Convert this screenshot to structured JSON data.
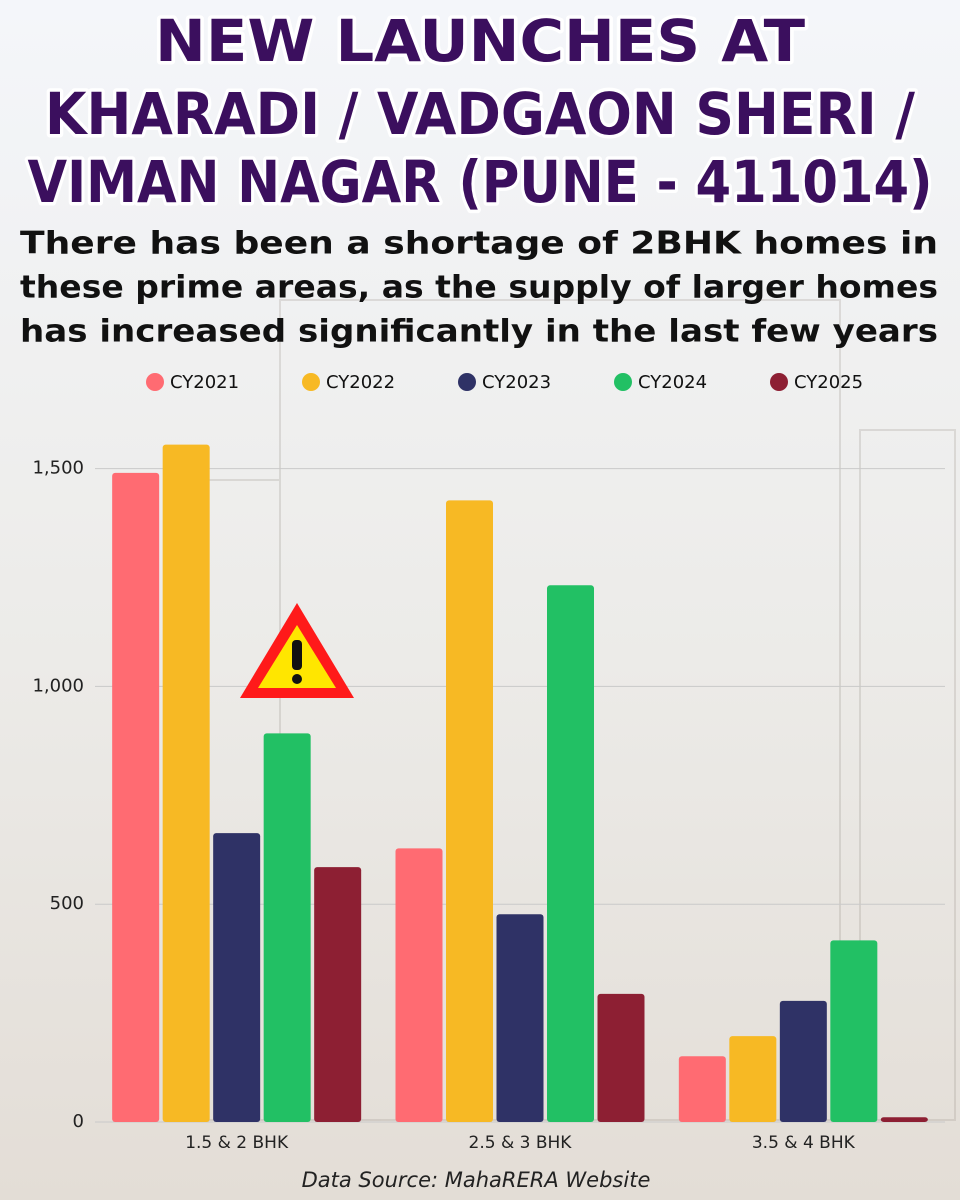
{
  "chart_data": {
    "type": "bar",
    "title": [
      "NEW LAUNCHES AT",
      "KHARADI / VADGAON SHERI /",
      "VIMAN NAGAR (PUNE - 411014)"
    ],
    "subtitle": [
      "There has been a shortage of 2BHK homes in",
      "these prime areas, as the supply of larger homes",
      "has increased significantly in the last few years"
    ],
    "categories": [
      "1.5 & 2 BHK",
      "2.5 & 3 BHK",
      "3.5 & 4 BHK"
    ],
    "series": [
      {
        "name": "CY2021",
        "color": "#ff6b72",
        "values": [
          1490,
          628,
          151
        ]
      },
      {
        "name": "CY2022",
        "color": "#f7b924",
        "values": [
          1555,
          1427,
          197
        ]
      },
      {
        "name": "CY2023",
        "color": "#2f3266",
        "values": [
          663,
          477,
          278
        ]
      },
      {
        "name": "CY2024",
        "color": "#22c064",
        "values": [
          892,
          1232,
          417
        ]
      },
      {
        "name": "CY2025",
        "color": "#8d1f33",
        "values": [
          585,
          294,
          11
        ]
      }
    ],
    "ylim": [
      0,
      1600
    ],
    "yticks": [
      0,
      500,
      {
        "value": 1000,
        "label": "1,000"
      },
      {
        "value": 1500,
        "label": "1,500"
      }
    ],
    "grid": true,
    "source": "Data Source: MahaRERA Website"
  }
}
